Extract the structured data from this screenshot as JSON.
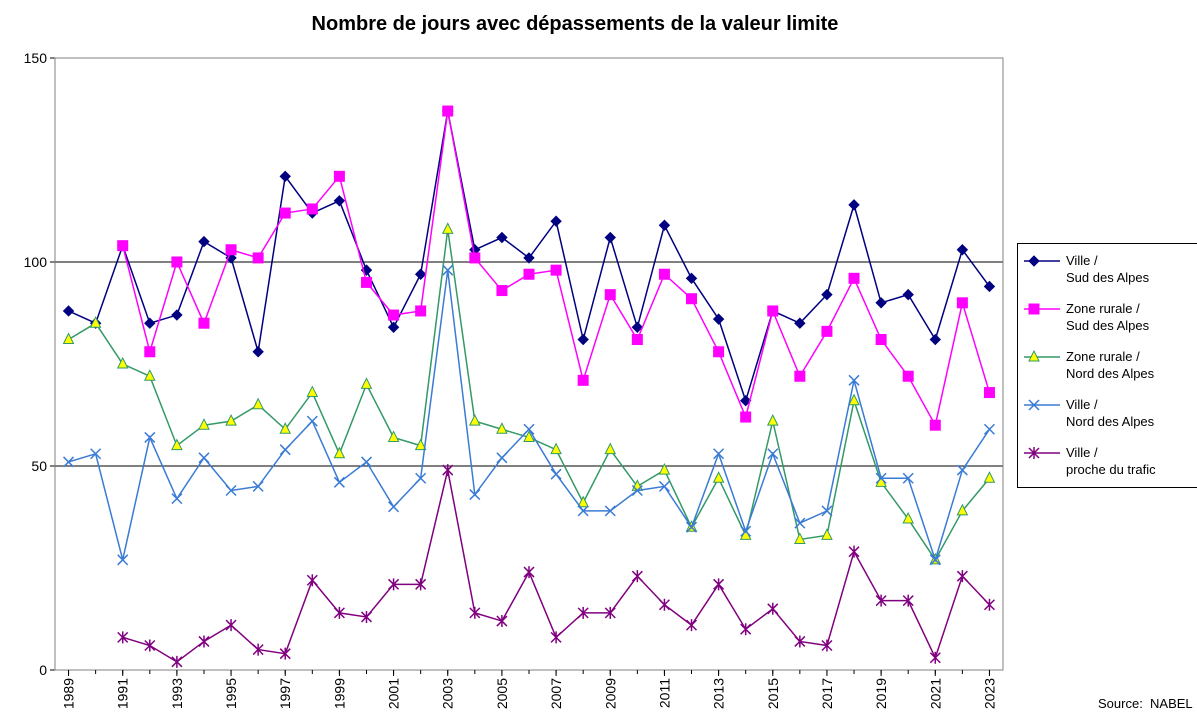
{
  "chart_data": {
    "type": "line",
    "title": "Nombre de jours avec dépassements de la valeur limite",
    "source": "Source:  NABEL",
    "x": [
      1989,
      1990,
      1991,
      1992,
      1993,
      1994,
      1995,
      1996,
      1997,
      1998,
      1999,
      2000,
      2001,
      2002,
      2003,
      2004,
      2005,
      2006,
      2007,
      2008,
      2009,
      2010,
      2011,
      2012,
      2013,
      2014,
      2015,
      2016,
      2017,
      2018,
      2019,
      2020,
      2021,
      2022,
      2023
    ],
    "xlim": [
      1988.5,
      2023.5
    ],
    "xticks": [
      1989,
      1991,
      1993,
      1995,
      1997,
      1999,
      2001,
      2003,
      2005,
      2007,
      2009,
      2011,
      2013,
      2015,
      2017,
      2019,
      2021,
      2023
    ],
    "ylim": [
      0,
      150
    ],
    "yticks": [
      0,
      50,
      100,
      150
    ],
    "grid": true,
    "legend": "right",
    "series": [
      {
        "name": "Ville /\nSud des Alpes",
        "color": "#000080",
        "marker": "diamond",
        "marker_fill": "#000080",
        "values": [
          88,
          85,
          104,
          85,
          87,
          105,
          101,
          78,
          121,
          112,
          115,
          98,
          84,
          97,
          137,
          103,
          106,
          101,
          110,
          81,
          106,
          84,
          109,
          96,
          86,
          66,
          88,
          85,
          92,
          114,
          90,
          92,
          81,
          103,
          94
        ]
      },
      {
        "name": "Zone rurale /\nSud des Alpes",
        "color": "#ff00ff",
        "marker": "square",
        "marker_fill": "#ff00ff",
        "values": [
          null,
          null,
          104,
          78,
          100,
          85,
          103,
          101,
          112,
          113,
          121,
          95,
          87,
          88,
          137,
          101,
          93,
          97,
          98,
          71,
          92,
          81,
          97,
          91,
          78,
          62,
          88,
          72,
          83,
          96,
          81,
          72,
          60,
          90,
          68
        ]
      },
      {
        "name": "Zone rurale /\nNord des Alpes",
        "color": "#339966",
        "marker": "triangle",
        "marker_fill": "#ffff00",
        "values": [
          81,
          85,
          75,
          72,
          55,
          60,
          61,
          65,
          59,
          68,
          53,
          70,
          57,
          55,
          108,
          61,
          59,
          57,
          54,
          41,
          54,
          45,
          49,
          35,
          47,
          33,
          61,
          32,
          33,
          66,
          46,
          37,
          27,
          39,
          47
        ]
      },
      {
        "name": "Ville /\nNord des Alpes",
        "color": "#3a7bd5",
        "marker": "x",
        "marker_fill": "none",
        "values": [
          51,
          53,
          27,
          57,
          42,
          52,
          44,
          45,
          54,
          61,
          46,
          51,
          40,
          47,
          98,
          43,
          52,
          59,
          48,
          39,
          39,
          44,
          45,
          35,
          53,
          34,
          53,
          36,
          39,
          71,
          47,
          47,
          27,
          49,
          59
        ]
      },
      {
        "name": "Ville /\nproche du trafic",
        "color": "#800080",
        "marker": "star",
        "marker_fill": "none",
        "values": [
          null,
          null,
          8,
          6,
          2,
          7,
          11,
          5,
          4,
          22,
          14,
          13,
          21,
          21,
          49,
          14,
          12,
          24,
          8,
          14,
          14,
          23,
          16,
          11,
          21,
          10,
          15,
          7,
          6,
          29,
          17,
          17,
          3,
          23,
          16
        ]
      }
    ]
  }
}
